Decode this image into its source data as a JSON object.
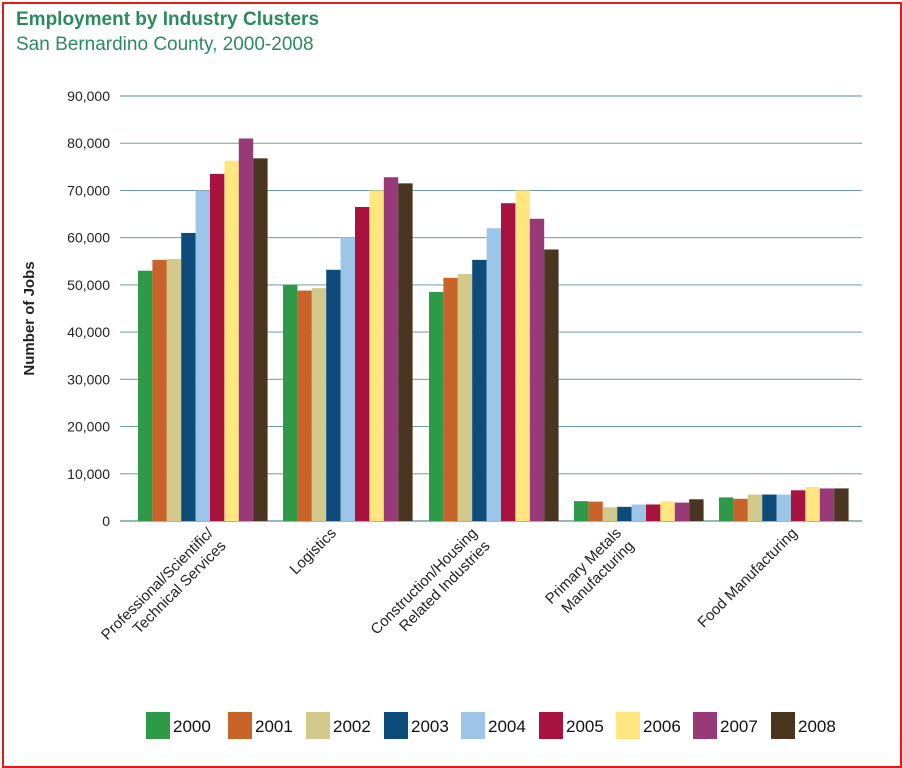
{
  "chart_data": {
    "type": "bar",
    "title": "Employment by Industry Clusters",
    "subtitle": "San Bernardino County, 2000-2008",
    "ylabel": "Number of Jobs",
    "xlabel": "",
    "ylim": [
      0,
      90000
    ],
    "yticks": [
      "0",
      "10,000",
      "20,000",
      "30,000",
      "40,000",
      "50,000",
      "60,000",
      "70,000",
      "80,000",
      "90,000"
    ],
    "ytick_values": [
      0,
      10000,
      20000,
      30000,
      40000,
      50000,
      60000,
      70000,
      80000,
      90000
    ],
    "grid": true,
    "legend_position": "bottom",
    "categories": [
      [
        "Professional/Scientific/",
        "Technical Services"
      ],
      [
        "Logistics"
      ],
      [
        "Construction/Housing",
        "Related Industries"
      ],
      [
        "Primary Metals",
        "Manufacturing"
      ],
      [
        "Food Manufacturing"
      ]
    ],
    "series": [
      {
        "name": "2000",
        "color": "#2e9a47",
        "values": [
          53000,
          50000,
          48500,
          4200,
          5000
        ]
      },
      {
        "name": "2001",
        "color": "#c8642a",
        "values": [
          55300,
          48800,
          51500,
          4100,
          4700
        ]
      },
      {
        "name": "2002",
        "color": "#d2c98a",
        "values": [
          55500,
          49300,
          52300,
          2900,
          5600
        ]
      },
      {
        "name": "2003",
        "color": "#0d4c7a",
        "values": [
          61000,
          53200,
          55300,
          3000,
          5600
        ]
      },
      {
        "name": "2004",
        "color": "#9cc5e8",
        "values": [
          70000,
          60000,
          62000,
          3500,
          5600
        ]
      },
      {
        "name": "2005",
        "color": "#a8123e",
        "values": [
          73500,
          66500,
          67300,
          3500,
          6500
        ]
      },
      {
        "name": "2006",
        "color": "#ffe680",
        "values": [
          76300,
          70000,
          70000,
          4200,
          7200
        ]
      },
      {
        "name": "2007",
        "color": "#983a78",
        "values": [
          81000,
          72800,
          64000,
          3900,
          6900
        ]
      },
      {
        "name": "2008",
        "color": "#4a3520",
        "values": [
          76800,
          71500,
          57500,
          4600,
          6900
        ]
      }
    ]
  },
  "colors": {
    "border": "#e21b1b",
    "title": "#2b8a5e",
    "grid": "#5a8f8f"
  }
}
